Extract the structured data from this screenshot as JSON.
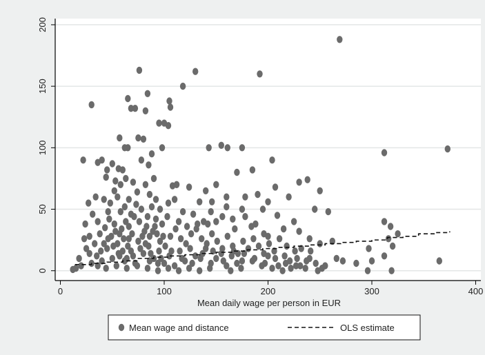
{
  "chart_data": {
    "type": "scatter",
    "title": "",
    "xlabel": "Mean daily wage per person in EUR",
    "ylabel": "",
    "xlim": [
      0,
      400
    ],
    "ylim": [
      0,
      200
    ],
    "x_ticks": [
      0,
      100,
      200,
      300,
      400
    ],
    "y_ticks": [
      0,
      50,
      100,
      150,
      200
    ],
    "grid": "horizontal",
    "legend_position": "bottom",
    "colors": {
      "points": "#6b6b6b",
      "ols": "#111111",
      "plot_bg": "#ffffff",
      "background": "#eef0f0",
      "grid": "#e3e6e6"
    },
    "series": [
      {
        "name": "Mean wage and distance",
        "kind": "scatter",
        "points": [
          [
            269,
            188
          ],
          [
            76,
            163
          ],
          [
            130,
            162
          ],
          [
            192,
            160
          ],
          [
            118,
            150
          ],
          [
            84,
            144
          ],
          [
            30,
            135
          ],
          [
            65,
            140
          ],
          [
            68,
            132
          ],
          [
            72,
            132
          ],
          [
            105,
            138
          ],
          [
            106,
            133
          ],
          [
            82,
            130
          ],
          [
            100,
            120
          ],
          [
            104,
            118
          ],
          [
            95,
            120
          ],
          [
            57,
            108
          ],
          [
            75,
            108
          ],
          [
            80,
            107
          ],
          [
            65,
            100
          ],
          [
            62,
            100
          ],
          [
            98,
            100
          ],
          [
            143,
            100
          ],
          [
            155,
            102
          ],
          [
            161,
            100
          ],
          [
            175,
            100
          ],
          [
            312,
            96
          ],
          [
            373,
            99
          ],
          [
            88,
            95
          ],
          [
            40,
            90
          ],
          [
            22,
            90
          ],
          [
            36,
            88
          ],
          [
            50,
            87
          ],
          [
            45,
            82
          ],
          [
            56,
            83
          ],
          [
            60,
            82
          ],
          [
            78,
            90
          ],
          [
            85,
            86
          ],
          [
            204,
            90
          ],
          [
            185,
            82
          ],
          [
            170,
            80
          ],
          [
            90,
            75
          ],
          [
            82,
            70
          ],
          [
            70,
            72
          ],
          [
            63,
            75
          ],
          [
            53,
            73
          ],
          [
            44,
            76
          ],
          [
            108,
            69
          ],
          [
            112,
            70
          ],
          [
            124,
            68
          ],
          [
            140,
            65
          ],
          [
            150,
            70
          ],
          [
            160,
            60
          ],
          [
            178,
            60
          ],
          [
            190,
            62
          ],
          [
            207,
            68
          ],
          [
            220,
            60
          ],
          [
            230,
            72
          ],
          [
            238,
            74
          ],
          [
            250,
            65
          ],
          [
            160,
            52
          ],
          [
            175,
            50
          ],
          [
            195,
            50
          ],
          [
            209,
            45
          ],
          [
            225,
            40
          ],
          [
            245,
            50
          ],
          [
            258,
            48
          ],
          [
            27,
            55
          ],
          [
            34,
            60
          ],
          [
            42,
            58
          ],
          [
            48,
            55
          ],
          [
            55,
            60
          ],
          [
            66,
            58
          ],
          [
            88,
            52
          ],
          [
            96,
            50
          ],
          [
            104,
            55
          ],
          [
            118,
            48
          ],
          [
            128,
            46
          ],
          [
            138,
            40
          ],
          [
            142,
            38
          ],
          [
            150,
            40
          ],
          [
            156,
            44
          ],
          [
            166,
            42
          ],
          [
            184,
            36
          ],
          [
            196,
            30
          ],
          [
            200,
            28
          ],
          [
            215,
            34
          ],
          [
            230,
            32
          ],
          [
            240,
            26
          ],
          [
            250,
            22
          ],
          [
            262,
            24
          ],
          [
            218,
            20
          ],
          [
            232,
            18
          ],
          [
            240,
            10
          ],
          [
            246,
            6
          ],
          [
            255,
            4
          ],
          [
            266,
            10
          ],
          [
            272,
            8
          ],
          [
            285,
            6
          ],
          [
            300,
            8
          ],
          [
            312,
            12
          ],
          [
            320,
            20
          ],
          [
            318,
            36
          ],
          [
            325,
            30
          ],
          [
            312,
            40
          ],
          [
            316,
            26
          ],
          [
            297,
            18
          ],
          [
            365,
            8
          ],
          [
            319,
            0
          ],
          [
            296,
            0
          ],
          [
            200,
            12
          ],
          [
            210,
            4
          ],
          [
            222,
            2
          ],
          [
            228,
            10
          ],
          [
            185,
            8
          ],
          [
            170,
            6
          ],
          [
            160,
            4
          ],
          [
            150,
            10
          ],
          [
            140,
            18
          ],
          [
            130,
            12
          ],
          [
            120,
            8
          ],
          [
            110,
            4
          ],
          [
            100,
            6
          ],
          [
            90,
            10
          ],
          [
            80,
            14
          ],
          [
            70,
            12
          ],
          [
            60,
            16
          ],
          [
            50,
            10
          ],
          [
            40,
            8
          ],
          [
            30,
            6
          ],
          [
            20,
            4
          ],
          [
            15,
            2
          ],
          [
            12,
            1
          ],
          [
            18,
            10
          ],
          [
            25,
            18
          ],
          [
            28,
            28
          ],
          [
            33,
            22
          ],
          [
            38,
            30
          ],
          [
            43,
            35
          ],
          [
            47,
            42
          ],
          [
            52,
            38
          ],
          [
            57,
            30
          ],
          [
            61,
            26
          ],
          [
            66,
            36
          ],
          [
            71,
            44
          ],
          [
            76,
            40
          ],
          [
            81,
            32
          ],
          [
            86,
            28
          ],
          [
            91,
            36
          ],
          [
            96,
            24
          ],
          [
            101,
            20
          ],
          [
            106,
            28
          ],
          [
            111,
            34
          ],
          [
            116,
            26
          ],
          [
            121,
            22
          ],
          [
            126,
            30
          ],
          [
            131,
            34
          ],
          [
            136,
            26
          ],
          [
            141,
            22
          ],
          [
            146,
            30
          ],
          [
            151,
            24
          ],
          [
            156,
            18
          ],
          [
            161,
            28
          ],
          [
            166,
            20
          ],
          [
            171,
            14
          ],
          [
            176,
            24
          ],
          [
            181,
            18
          ],
          [
            186,
            26
          ],
          [
            191,
            20
          ],
          [
            196,
            14
          ],
          [
            201,
            22
          ],
          [
            206,
            16
          ],
          [
            211,
            26
          ],
          [
            216,
            12
          ],
          [
            221,
            8
          ],
          [
            226,
            16
          ],
          [
            231,
            4
          ],
          [
            236,
            2
          ],
          [
            241,
            16
          ],
          [
            35,
            12
          ],
          [
            45,
            18
          ],
          [
            55,
            22
          ],
          [
            65,
            20
          ],
          [
            75,
            24
          ],
          [
            85,
            20
          ],
          [
            95,
            16
          ],
          [
            105,
            12
          ],
          [
            115,
            16
          ],
          [
            125,
            18
          ],
          [
            135,
            10
          ],
          [
            145,
            6
          ],
          [
            155,
            14
          ],
          [
            165,
            12
          ],
          [
            175,
            8
          ],
          [
            58,
            48
          ],
          [
            62,
            52
          ],
          [
            68,
            46
          ],
          [
            73,
            54
          ],
          [
            78,
            50
          ],
          [
            84,
            44
          ],
          [
            92,
            42
          ],
          [
            98,
            38
          ],
          [
            103,
            44
          ],
          [
            114,
            40
          ],
          [
            122,
            36
          ],
          [
            132,
            38
          ],
          [
            145,
            48
          ],
          [
            168,
            34
          ],
          [
            178,
            44
          ],
          [
            188,
            38
          ],
          [
            52,
            65
          ],
          [
            58,
            70
          ],
          [
            74,
            64
          ],
          [
            86,
            62
          ],
          [
            92,
            58
          ],
          [
            110,
            58
          ],
          [
            134,
            56
          ],
          [
            146,
            56
          ],
          [
            200,
            56
          ],
          [
            36,
            40
          ],
          [
            24,
            38
          ],
          [
            31,
            46
          ],
          [
            46,
            48
          ],
          [
            23,
            26
          ],
          [
            28,
            14
          ],
          [
            36,
            4
          ],
          [
            44,
            2
          ],
          [
            54,
            4
          ],
          [
            64,
            2
          ],
          [
            74,
            4
          ],
          [
            84,
            2
          ],
          [
            94,
            0
          ],
          [
            104,
            2
          ],
          [
            114,
            0
          ],
          [
            124,
            2
          ],
          [
            134,
            0
          ],
          [
            144,
            2
          ],
          [
            164,
            0
          ],
          [
            174,
            2
          ],
          [
            194,
            4
          ],
          [
            204,
            2
          ],
          [
            214,
            0
          ],
          [
            248,
            0
          ],
          [
            252,
            2
          ],
          [
            49,
            28
          ],
          [
            53,
            32
          ],
          [
            59,
            34
          ],
          [
            63,
            40
          ],
          [
            69,
            30
          ],
          [
            79,
            28
          ],
          [
            83,
            36
          ],
          [
            89,
            32
          ],
          [
            93,
            30
          ],
          [
            99,
            28
          ],
          [
            64,
            10
          ],
          [
            72,
            6
          ],
          [
            86,
            8
          ],
          [
            94,
            6
          ],
          [
            82,
            22
          ],
          [
            66,
            26
          ],
          [
            56,
            14
          ],
          [
            42,
            22
          ],
          [
            39,
            16
          ],
          [
            46,
            26
          ],
          [
            51,
            20
          ],
          [
            57,
            12
          ],
          [
            62,
            8
          ],
          [
            68,
            16
          ],
          [
            77,
            18
          ],
          [
            87,
            14
          ],
          [
            97,
            10
          ],
          [
            107,
            16
          ],
          [
            117,
            10
          ],
          [
            127,
            6
          ],
          [
            137,
            14
          ],
          [
            147,
            16
          ],
          [
            157,
            8
          ],
          [
            167,
            16
          ],
          [
            177,
            14
          ],
          [
            187,
            10
          ],
          [
            197,
            6
          ],
          [
            207,
            10
          ],
          [
            217,
            6
          ],
          [
            227,
            4
          ],
          [
            237,
            8
          ]
        ]
      },
      {
        "name": "OLS estimate",
        "kind": "line",
        "dashed": true,
        "x": [
          14,
          30,
          45,
          60,
          75,
          90,
          105,
          120,
          135,
          150,
          165,
          180,
          195,
          210,
          225,
          240,
          255,
          270,
          285,
          300,
          315,
          330,
          345,
          360,
          375
        ],
        "y": [
          5,
          6,
          7,
          8,
          10,
          11,
          12,
          13,
          14,
          15,
          16,
          17,
          18,
          19,
          20,
          21,
          22,
          23,
          24,
          25,
          27,
          28,
          30,
          31,
          32
        ]
      }
    ]
  }
}
